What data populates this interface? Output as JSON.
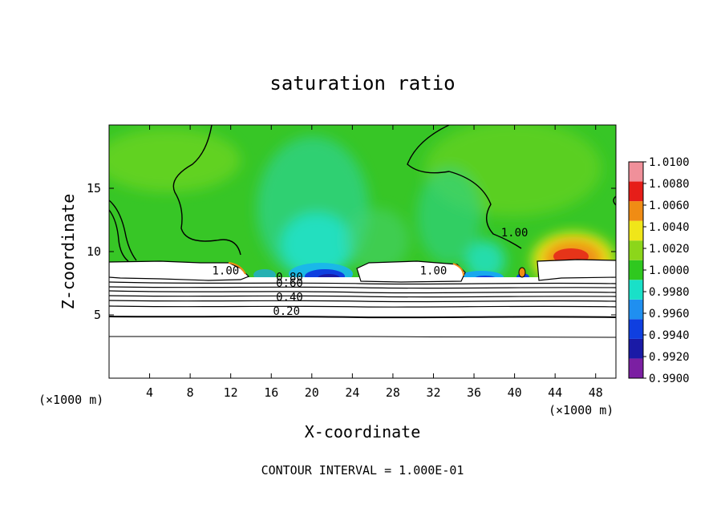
{
  "chart_data": {
    "type": "heatmap",
    "title": "saturation ratio",
    "xlabel": "X-coordinate",
    "ylabel": "Z-coordinate",
    "x_unit_left": "(×1000 m)",
    "x_unit_right": "(×1000 m)",
    "footer": "CONTOUR INTERVAL = 1.000E-01",
    "xlim": [
      0,
      50
    ],
    "ylim": [
      0,
      20
    ],
    "x_ticks": [
      4,
      8,
      12,
      16,
      20,
      24,
      28,
      32,
      36,
      40,
      44,
      48
    ],
    "x_tick_labels": [
      "4",
      "8",
      "12",
      "16",
      "20",
      "24",
      "28",
      "32",
      "36",
      "40",
      "44",
      "48"
    ],
    "y_ticks": [
      5,
      10,
      15
    ],
    "y_tick_labels": [
      "5",
      "10",
      "15"
    ],
    "colorbar": {
      "levels": [
        0.99,
        0.992,
        0.994,
        0.996,
        0.998,
        1.0,
        1.002,
        1.004,
        1.006,
        1.008,
        1.01
      ],
      "labels": [
        "0.9900",
        "0.9920",
        "0.9940",
        "0.9960",
        "0.9980",
        "1.0000",
        "1.0020",
        "1.0040",
        "1.0060",
        "1.0080",
        "1.0100"
      ],
      "colors": [
        "#7b1fa2",
        "#1a1aa6",
        "#0f3fe0",
        "#1f8ff0",
        "#19e0c8",
        "#2fc81f",
        "#8cd61a",
        "#f0e619",
        "#f08c14",
        "#e61e19",
        "#f0909a"
      ]
    },
    "contour_interval": 0.1,
    "contour_labels": [
      {
        "text": "1.00",
        "x": 11.5,
        "z": 8.2
      },
      {
        "text": "1.00",
        "x": 32.0,
        "z": 8.2
      },
      {
        "text": "1.00",
        "x": 40.0,
        "z": 11.2
      },
      {
        "text": "0.80",
        "x": 17.8,
        "z": 7.7
      },
      {
        "text": "0.60",
        "x": 17.8,
        "z": 7.2
      },
      {
        "text": "0.40",
        "x": 17.8,
        "z": 6.1
      },
      {
        "text": "0.20",
        "x": 17.5,
        "z": 5.0
      }
    ]
  }
}
